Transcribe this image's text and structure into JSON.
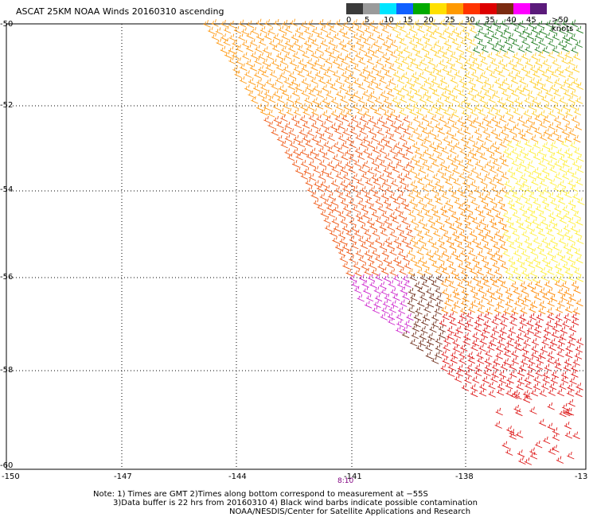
{
  "title": "ASCAT 25KM NOAA Winds 20160310 ascending",
  "legend": {
    "labels": [
      "0",
      "5",
      "10",
      "15",
      "20",
      "25",
      "30",
      "35",
      "40",
      "45",
      ">50 knots"
    ],
    "colors": [
      "#3a3a3a",
      "#9a9a9a",
      "#00e5ff",
      "#1060ff",
      "#00aa00",
      "#ffe000",
      "#ff9900",
      "#ff3300",
      "#dd0000",
      "#7a2a10",
      "#ff00ff",
      "#5a1a7a"
    ]
  },
  "axes": {
    "x_ticks": [
      "-150",
      "-147",
      "-144",
      "-141",
      "-138",
      "-13"
    ],
    "y_ticks": [
      "-50",
      "-52",
      "-54",
      "-56",
      "-58",
      "-60"
    ]
  },
  "time_marker": "8:10",
  "notes": {
    "line1": "Note: 1) Times are GMT 2)Times along bottom correspond to measurement at −55S",
    "line2": "3)Data buffer is 22 hrs from 20160310 4) Black wind barbs indicate possible contamination",
    "line3": "NOAA/NESDIS/Center for Satellite Applications and Research"
  }
}
